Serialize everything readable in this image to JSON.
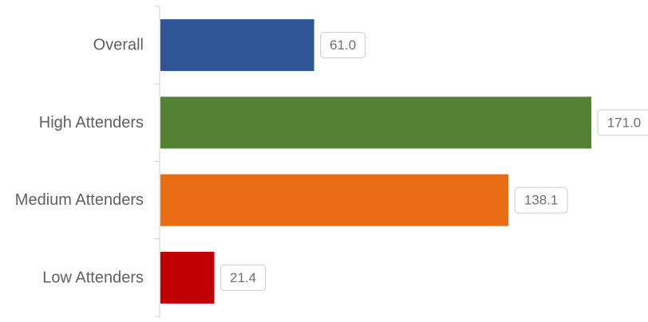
{
  "chart_data": {
    "type": "bar",
    "orientation": "horizontal",
    "categories": [
      "Overall",
      "High Attenders",
      "Medium Attenders",
      "Low Attenders"
    ],
    "values": [
      61.0,
      171.0,
      138.1,
      21.4
    ],
    "value_labels": [
      "61.0",
      "171.0",
      "138.1",
      "21.4"
    ],
    "colors": [
      "#2f5597",
      "#548235",
      "#e96c14",
      "#c00000"
    ],
    "xlim": [
      0,
      171.0
    ],
    "grid": false,
    "legend": "none",
    "title": "",
    "xlabel": "",
    "ylabel": ""
  }
}
